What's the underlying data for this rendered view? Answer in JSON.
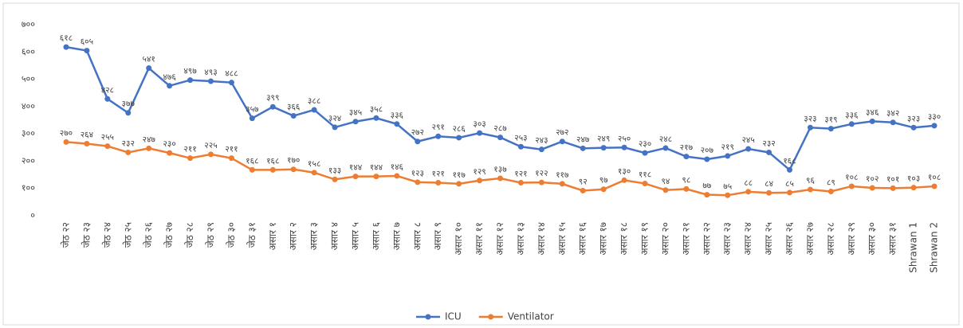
{
  "chart_data": {
    "type": "line",
    "categories": [
      "जेठ २२",
      "जेठ २३",
      "जेठ २४",
      "जेठ २५",
      "जेठ २६",
      "जेठ २७",
      "जेठ २८",
      "जेठ २९",
      "जेठ ३०",
      "जेठ ३१",
      "असार १",
      "असार २",
      "असार ३",
      "असार ४",
      "असार ५",
      "असार ६",
      "असार ७",
      "असार ८",
      "असार ९",
      "असार १०",
      "असार ११",
      "असार १२",
      "असार १३",
      "असार १४",
      "असार १५",
      "असार १६",
      "असार १७",
      "असार १८",
      "असार १९",
      "असार २०",
      "असार २१",
      "असार २२",
      "असार २३",
      "असार २४",
      "असार २५",
      "असार २६",
      "असार २७",
      "असार २८",
      "असार २९",
      "असार ३०",
      "असार ३१",
      "Shrawan 1",
      "Shrawan 2"
    ],
    "series": [
      {
        "name": "ICU",
        "color": "#4472c4",
        "values": [
          618,
          605,
          428,
          377,
          541,
          476,
          497,
          493,
          488,
          357,
          399,
          366,
          388,
          324,
          345,
          358,
          336,
          272,
          291,
          286,
          303,
          287,
          253,
          243,
          272,
          247,
          249,
          250,
          230,
          248,
          217,
          207,
          219,
          245,
          232,
          168,
          323,
          319,
          336,
          346,
          342,
          323,
          330
        ],
        "value_labels": [
          "६१८",
          "६०५",
          "४२८",
          "३७७",
          "५४१",
          "४७६",
          "४९७",
          "४९३",
          "४८८",
          "३५७",
          "३९९",
          "३६६",
          "३८८",
          "३२४",
          "३४५",
          "३५८",
          "३३६",
          "२७२",
          "२९१",
          "२८६",
          "३०३",
          "२८७",
          "२५३",
          "२४३",
          "२७२",
          "२४७",
          "२४९",
          "२५०",
          "२३०",
          "२४८",
          "२१७",
          "२०७",
          "२१९",
          "२४५",
          "२३२",
          "१६८",
          "३२३",
          "३१९",
          "३३६",
          "३४६",
          "३४२",
          "३२३",
          "३३०"
        ]
      },
      {
        "name": "Ventilator",
        "color": "#ed7d31",
        "values": [
          270,
          264,
          255,
          232,
          247,
          230,
          211,
          225,
          211,
          168,
          168,
          170,
          158,
          133,
          144,
          144,
          146,
          123,
          121,
          117,
          129,
          137,
          121,
          122,
          117,
          92,
          97,
          130,
          118,
          94,
          98,
          77,
          75,
          88,
          84,
          85,
          96,
          89,
          108,
          102,
          101,
          103,
          108
        ],
        "value_labels": [
          "२७०",
          "२६४",
          "२५५",
          "२३२",
          "२४७",
          "२३०",
          "२११",
          "२२५",
          "२११",
          "१६८",
          "१६८",
          "१७०",
          "१५८",
          "१३३",
          "१४४",
          "१४४",
          "१४६",
          "१२३",
          "१२१",
          "११७",
          "१२९",
          "१३७",
          "१२१",
          "१२२",
          "११७",
          "९२",
          "९७",
          "१३०",
          "११८",
          "९४",
          "९८",
          "७७",
          "७५",
          "८८",
          "८४",
          "८५",
          "९६",
          "८९",
          "१०८",
          "१०२",
          "१०१",
          "१०३",
          "१०८"
        ]
      }
    ],
    "ylim": [
      0,
      700
    ],
    "yticks": [
      {
        "value": 0,
        "label": "०"
      },
      {
        "value": 100,
        "label": "१००"
      },
      {
        "value": 200,
        "label": "२००"
      },
      {
        "value": 300,
        "label": "३००"
      },
      {
        "value": 400,
        "label": "४००"
      },
      {
        "value": 500,
        "label": "५००"
      },
      {
        "value": 600,
        "label": "६००"
      },
      {
        "value": 700,
        "label": "७००"
      }
    ],
    "grid": false,
    "legend": "bottom"
  }
}
